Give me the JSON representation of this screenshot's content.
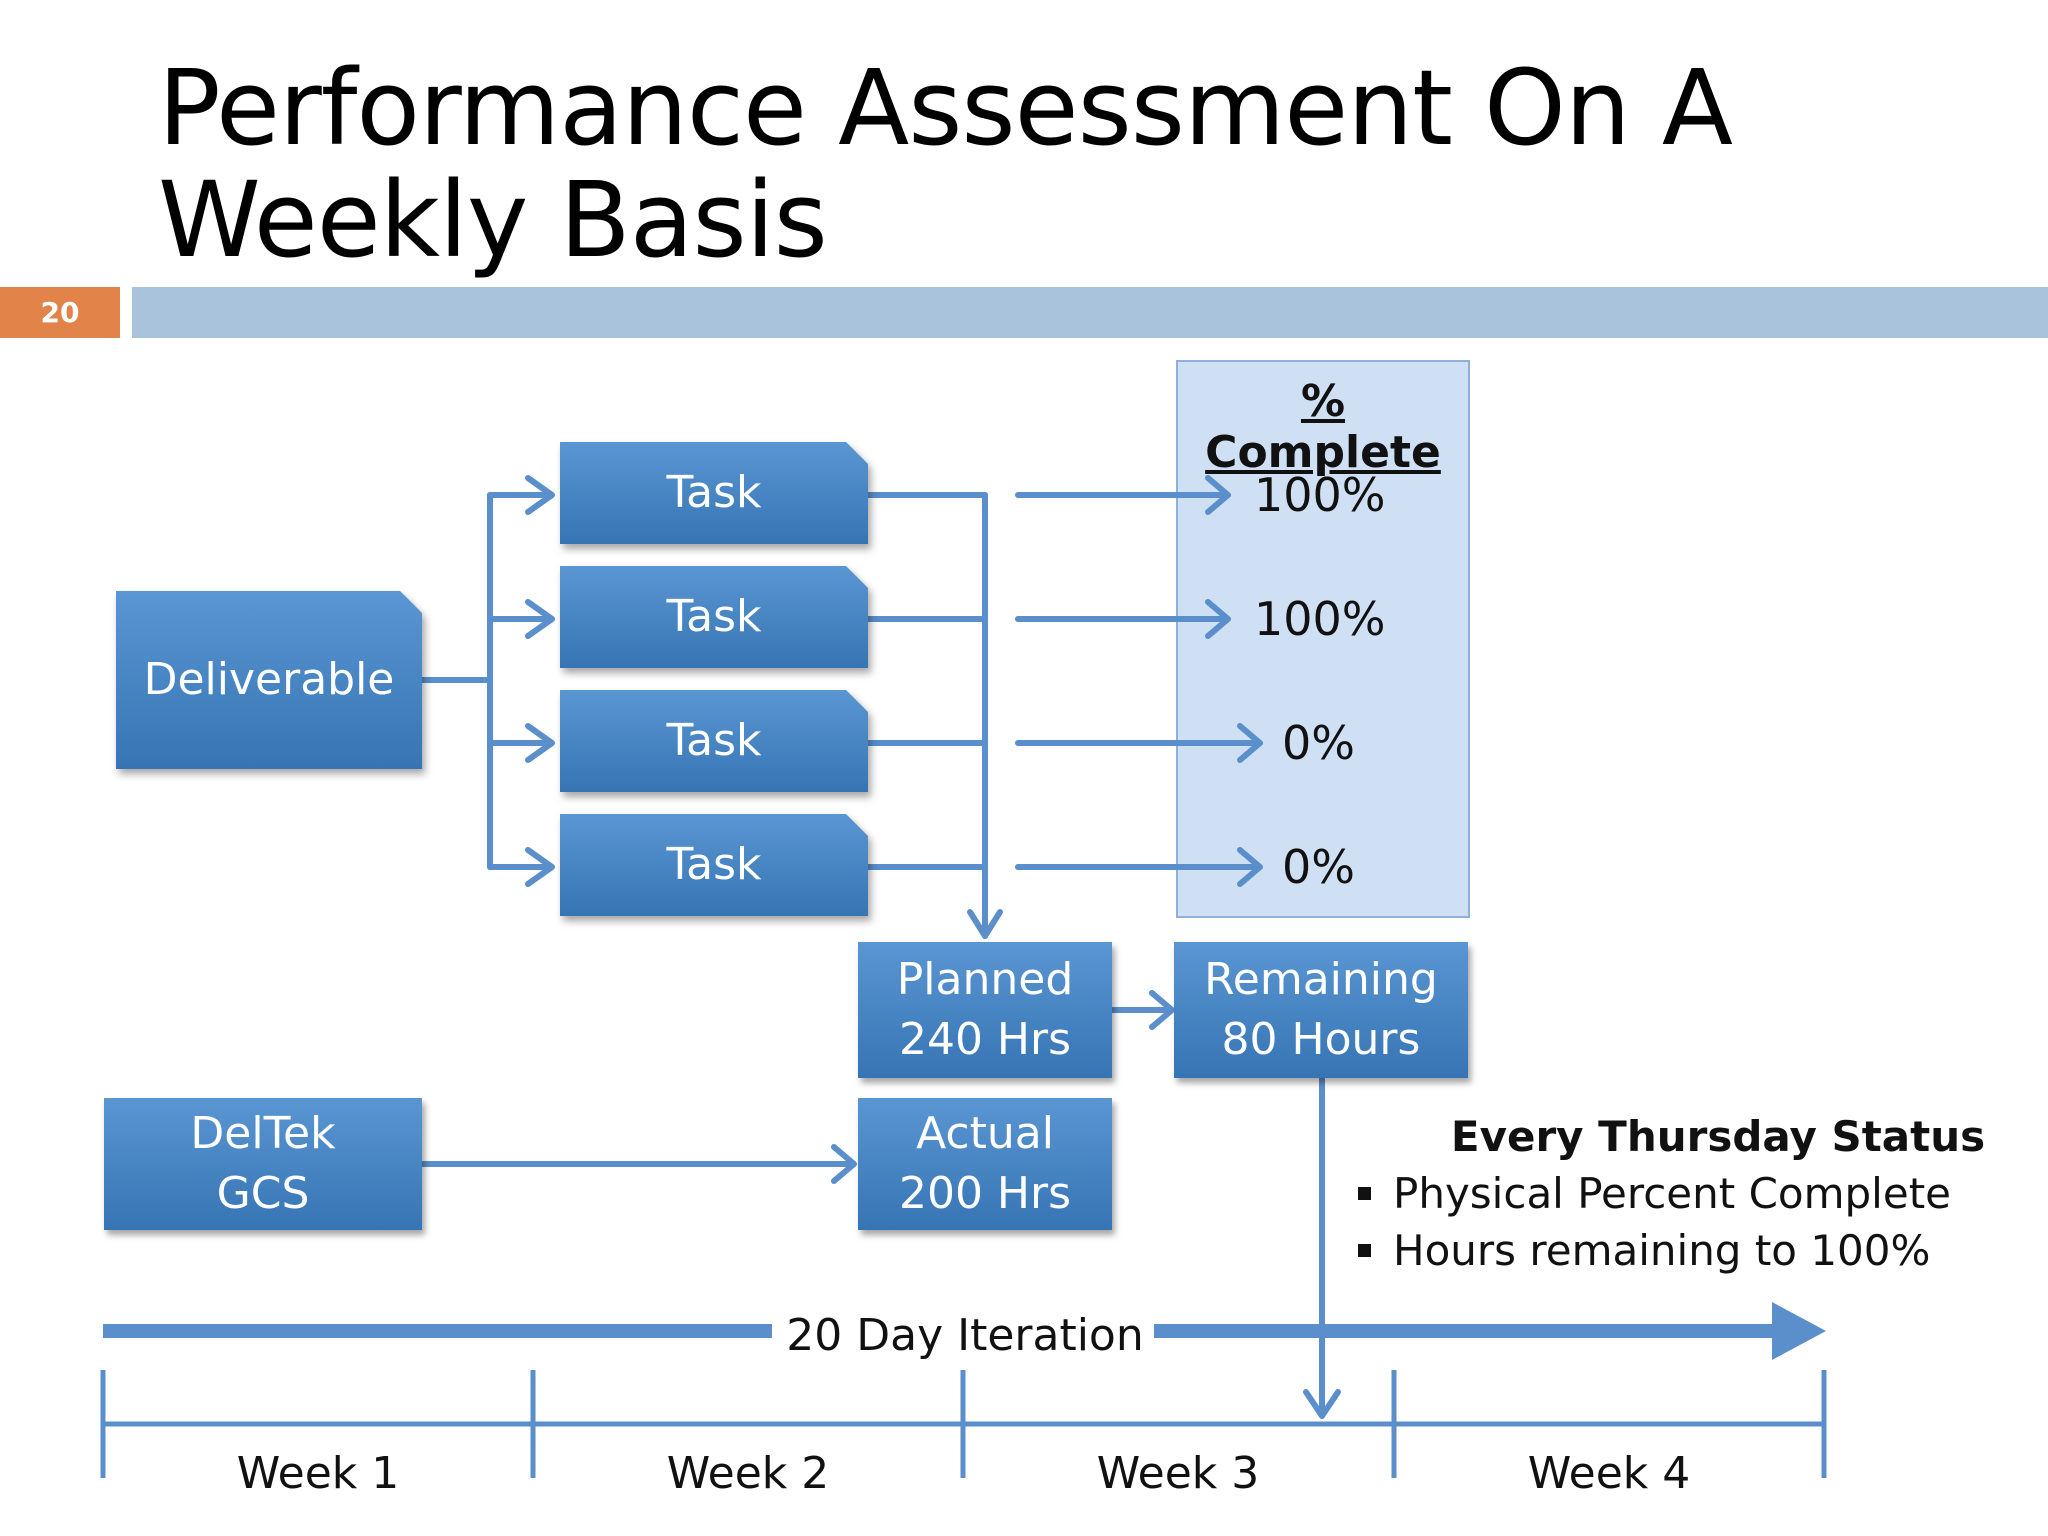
{
  "slide": {
    "title": "Performance Assessment On A Weekly Basis",
    "number": "20"
  },
  "boxes": {
    "deliverable": "Deliverable",
    "tasks": [
      "Task",
      "Task",
      "Task",
      "Task"
    ],
    "planned": [
      "Planned",
      "240 Hrs"
    ],
    "remaining": [
      "Remaining",
      "80 Hours"
    ],
    "deltek": [
      "DelTek",
      "GCS"
    ],
    "actual": [
      "Actual",
      "200 Hrs"
    ]
  },
  "percent_complete": {
    "title": "% Complete",
    "values": [
      "100%",
      "100%",
      "0%",
      "0%"
    ]
  },
  "status": {
    "title": "Every Thursday Status",
    "bullets": [
      "Physical Percent Complete",
      "Hours remaining to 100%"
    ]
  },
  "timeline": {
    "label": "20 Day Iteration",
    "weeks": [
      "Week 1",
      "Week 2",
      "Week 3",
      "Week 4"
    ]
  },
  "colors": {
    "box": "#3f7fbf",
    "line": "#5a8fcb",
    "panel": "#cfe0f4",
    "slide_number_bg": "#e2834a",
    "rule": "#a8c3db"
  }
}
